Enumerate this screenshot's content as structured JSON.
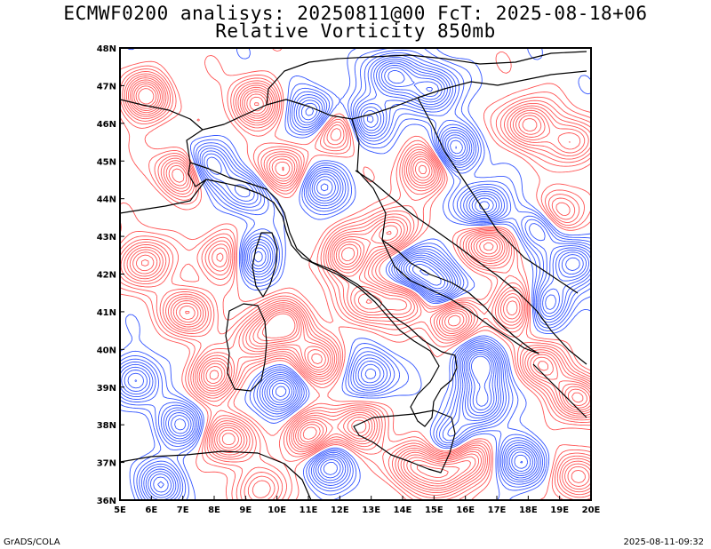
{
  "header": {
    "title_line1": "ECMWF0200 analisys: 20250811@00 FcT: 2025-08-18+06",
    "title_line2": "Relative Vorticity 850mb"
  },
  "footer": {
    "left": "GrADS/COLA",
    "right": "2025-08-11-09:32"
  },
  "map": {
    "lon_range": [
      5,
      20
    ],
    "lat_range": [
      36,
      48
    ],
    "lon_ticks": [
      "5E",
      "6E",
      "7E",
      "8E",
      "9E",
      "10E",
      "11E",
      "12E",
      "13E",
      "14E",
      "15E",
      "16E",
      "17E",
      "18E",
      "19E",
      "20E"
    ],
    "lat_ticks": [
      "36N",
      "37N",
      "38N",
      "39N",
      "40N",
      "41N",
      "42N",
      "43N",
      "44N",
      "45N",
      "46N",
      "47N",
      "48N"
    ],
    "colors": {
      "positive": "#ff5555",
      "negative": "#3355ff",
      "coast": "#000000"
    },
    "vorticity_centers": [
      {
        "lon": 7.0,
        "lat": 44.7,
        "sign": 1,
        "amp": 1.0
      },
      {
        "lon": 7.7,
        "lat": 44.9,
        "sign": -1,
        "amp": 0.9
      },
      {
        "lon": 11.2,
        "lat": 46.2,
        "sign": -1,
        "amp": 1.0
      },
      {
        "lon": 11.9,
        "lat": 45.9,
        "sign": 1,
        "amp": 1.0
      },
      {
        "lon": 12.9,
        "lat": 46.1,
        "sign": -1,
        "amp": 1.0
      },
      {
        "lon": 13.7,
        "lat": 47.3,
        "sign": -1,
        "amp": 1.0
      },
      {
        "lon": 15.0,
        "lat": 46.9,
        "sign": -1,
        "amp": 1.0
      },
      {
        "lon": 15.6,
        "lat": 45.3,
        "sign": -1,
        "amp": 1.0
      },
      {
        "lon": 14.7,
        "lat": 44.8,
        "sign": 1,
        "amp": 1.0
      },
      {
        "lon": 16.6,
        "lat": 43.8,
        "sign": -1,
        "amp": 1.0
      },
      {
        "lon": 16.8,
        "lat": 42.8,
        "sign": 1,
        "amp": 1.0
      },
      {
        "lon": 18.4,
        "lat": 43.3,
        "sign": -1,
        "amp": 1.0
      },
      {
        "lon": 18.9,
        "lat": 43.6,
        "sign": 1,
        "amp": 1.0
      },
      {
        "lon": 19.5,
        "lat": 42.3,
        "sign": -1,
        "amp": 1.0
      },
      {
        "lon": 18.0,
        "lat": 46.0,
        "sign": 1,
        "amp": 1.0
      },
      {
        "lon": 19.4,
        "lat": 45.5,
        "sign": 1,
        "amp": 0.8
      },
      {
        "lon": 9.3,
        "lat": 46.5,
        "sign": 1,
        "amp": 0.9
      },
      {
        "lon": 5.8,
        "lat": 46.7,
        "sign": 1,
        "amp": 1.0
      },
      {
        "lon": 5.8,
        "lat": 42.3,
        "sign": 1,
        "amp": 1.0
      },
      {
        "lon": 7.2,
        "lat": 41.0,
        "sign": 1,
        "amp": 1.0
      },
      {
        "lon": 8.0,
        "lat": 39.3,
        "sign": 1,
        "amp": 1.0
      },
      {
        "lon": 9.3,
        "lat": 40.3,
        "sign": 1,
        "amp": 0.8
      },
      {
        "lon": 5.6,
        "lat": 39.2,
        "sign": -1,
        "amp": 0.8
      },
      {
        "lon": 7.0,
        "lat": 38.0,
        "sign": -1,
        "amp": 0.8
      },
      {
        "lon": 8.4,
        "lat": 37.6,
        "sign": 1,
        "amp": 1.0
      },
      {
        "lon": 9.3,
        "lat": 42.5,
        "sign": -1,
        "amp": 0.9
      },
      {
        "lon": 10.3,
        "lat": 40.7,
        "sign": 1,
        "amp": 1.0
      },
      {
        "lon": 10.1,
        "lat": 38.9,
        "sign": -1,
        "amp": 1.0
      },
      {
        "lon": 11.2,
        "lat": 39.7,
        "sign": 1,
        "amp": 0.9
      },
      {
        "lon": 11.0,
        "lat": 37.7,
        "sign": 1,
        "amp": 1.0
      },
      {
        "lon": 11.6,
        "lat": 36.9,
        "sign": -1,
        "amp": 0.8
      },
      {
        "lon": 12.6,
        "lat": 38.0,
        "sign": 1,
        "amp": 0.9
      },
      {
        "lon": 12.2,
        "lat": 42.5,
        "sign": 1,
        "amp": 1.0
      },
      {
        "lon": 13.6,
        "lat": 43.1,
        "sign": 1,
        "amp": 0.9
      },
      {
        "lon": 12.9,
        "lat": 41.3,
        "sign": 1,
        "amp": 0.8
      },
      {
        "lon": 14.3,
        "lat": 42.1,
        "sign": -1,
        "amp": 1.0
      },
      {
        "lon": 14.2,
        "lat": 41.3,
        "sign": 1,
        "amp": 0.8
      },
      {
        "lon": 15.6,
        "lat": 40.8,
        "sign": 1,
        "amp": 0.9
      },
      {
        "lon": 15.2,
        "lat": 41.6,
        "sign": -1,
        "amp": 0.9
      },
      {
        "lon": 16.5,
        "lat": 39.6,
        "sign": -1,
        "amp": 1.0
      },
      {
        "lon": 16.6,
        "lat": 38.6,
        "sign": -1,
        "amp": 1.0
      },
      {
        "lon": 15.6,
        "lat": 37.5,
        "sign": -1,
        "amp": 1.0
      },
      {
        "lon": 16.0,
        "lat": 37.2,
        "sign": 1,
        "amp": 1.0
      },
      {
        "lon": 15.3,
        "lat": 36.7,
        "sign": 1,
        "amp": 0.9
      },
      {
        "lon": 13.0,
        "lat": 39.3,
        "sign": -1,
        "amp": 0.8
      },
      {
        "lon": 14.3,
        "lat": 37.0,
        "sign": 1,
        "amp": 0.8
      },
      {
        "lon": 17.6,
        "lat": 41.1,
        "sign": 1,
        "amp": 0.9
      },
      {
        "lon": 18.6,
        "lat": 41.2,
        "sign": -1,
        "amp": 0.9
      },
      {
        "lon": 18.4,
        "lat": 39.6,
        "sign": 1,
        "amp": 0.8
      },
      {
        "lon": 19.6,
        "lat": 38.7,
        "sign": 1,
        "amp": 1.0
      },
      {
        "lon": 17.8,
        "lat": 37.0,
        "sign": -1,
        "amp": 0.9
      },
      {
        "lon": 19.5,
        "lat": 36.6,
        "sign": 1,
        "amp": 0.8
      },
      {
        "lon": 6.3,
        "lat": 36.4,
        "sign": -1,
        "amp": 0.8
      },
      {
        "lon": 9.6,
        "lat": 36.3,
        "sign": 1,
        "amp": 0.7
      },
      {
        "lon": 10.2,
        "lat": 44.8,
        "sign": 1,
        "amp": 0.9
      },
      {
        "lon": 9.0,
        "lat": 44.2,
        "sign": -1,
        "amp": 0.7
      },
      {
        "lon": 11.4,
        "lat": 44.3,
        "sign": -1,
        "amp": 0.8
      },
      {
        "lon": 8.3,
        "lat": 42.5,
        "sign": 1,
        "amp": 0.8
      }
    ]
  }
}
